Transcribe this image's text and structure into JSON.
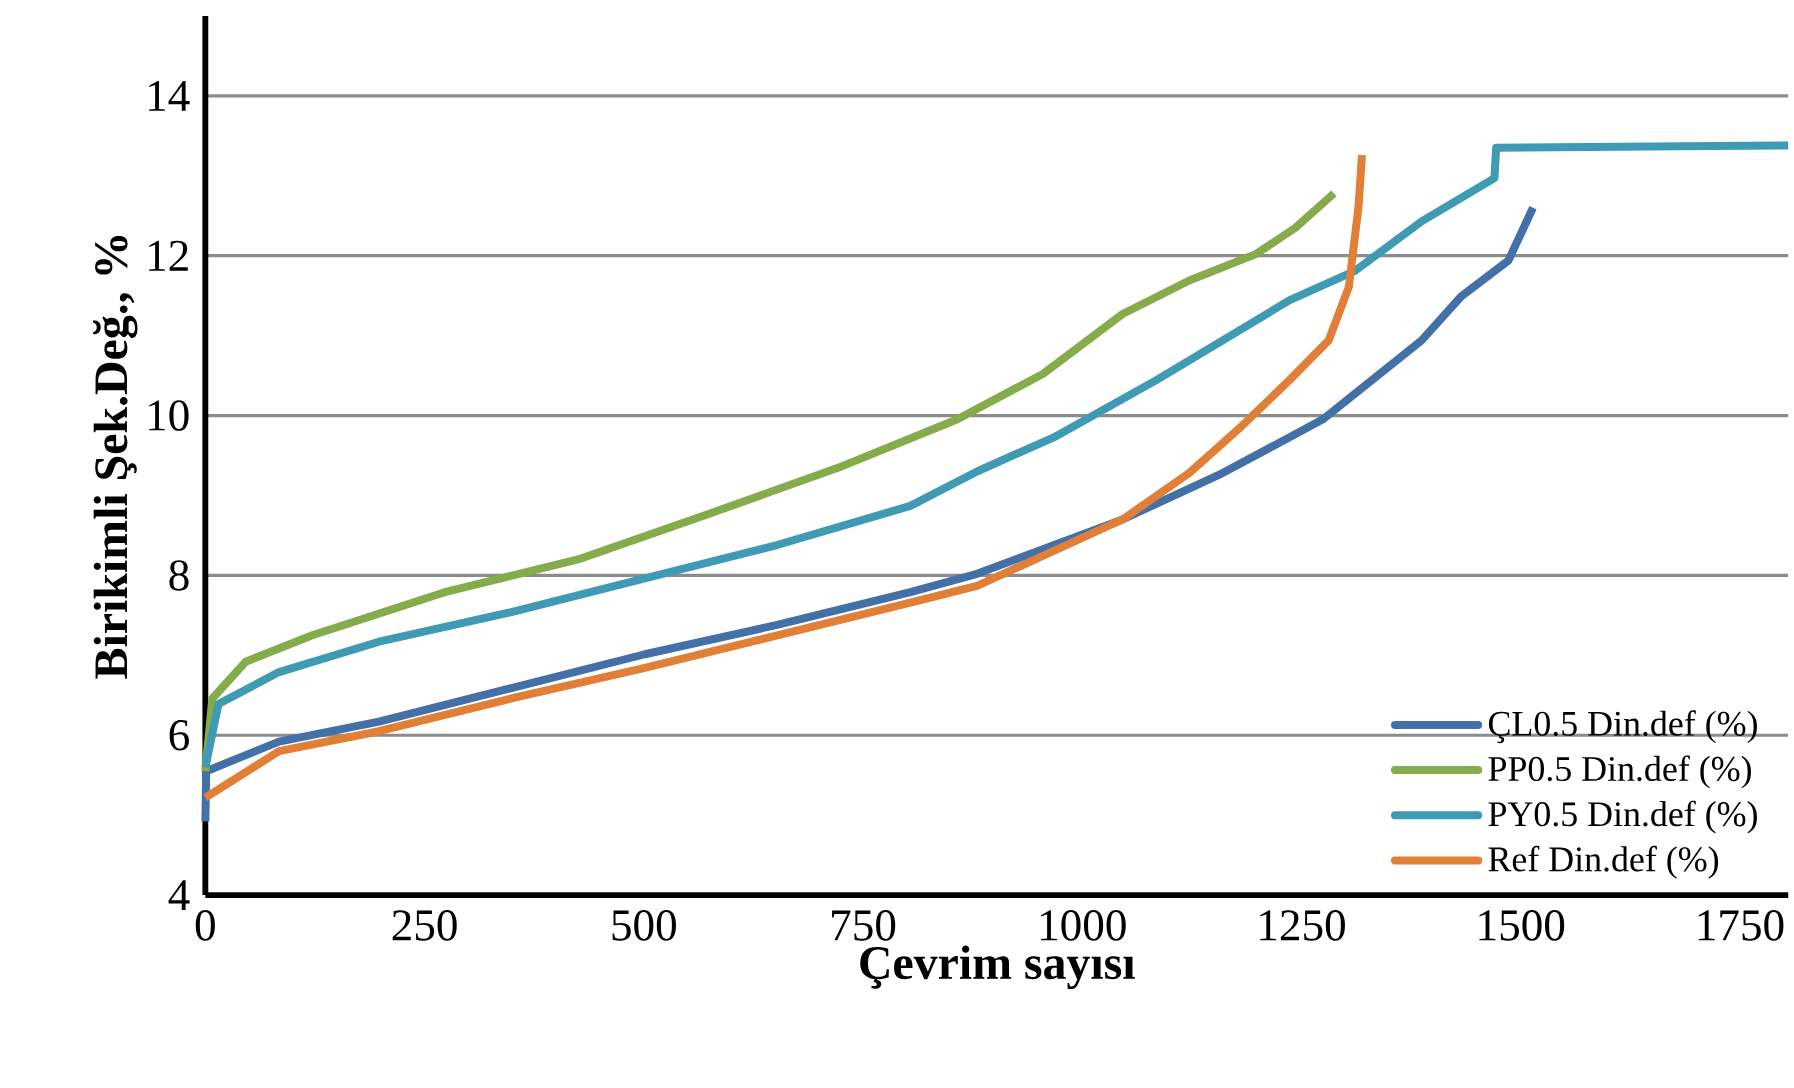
{
  "chart_data": {
    "type": "line",
    "xlabel": "Çevrim sayısı",
    "ylabel": "Birikimli Şek.Değ., %",
    "xlim": [
      0,
      1805
    ],
    "ylim": [
      4,
      15
    ],
    "xticks": [
      0,
      250,
      500,
      750,
      1000,
      1250,
      1500,
      1750
    ],
    "yticks": [
      4,
      6,
      8,
      10,
      12,
      14
    ],
    "grid": "y",
    "legend": "bottom right",
    "marker": "none",
    "line_style": "solid",
    "series": [
      {
        "name": "ÇL0.5 Din.def (%)",
        "color": "#4470a8",
        "x": [
          0,
          1,
          84,
          198,
          349,
          500,
          652,
          804,
          880,
          1046,
          1160,
          1274,
          1387,
          1432,
          1486,
          1514
        ],
        "values": [
          4.92,
          5.55,
          5.92,
          6.17,
          6.59,
          7.01,
          7.38,
          7.79,
          8.02,
          8.7,
          9.28,
          9.95,
          10.94,
          11.49,
          11.94,
          12.6
        ]
      },
      {
        "name": "PP0.5 Din.def (%)",
        "color": "#86ab4a",
        "x": [
          0,
          8,
          46,
          122,
          273,
          425,
          577,
          727,
          857,
          955,
          1046,
          1122,
          1198,
          1243,
          1287
        ],
        "values": [
          5.55,
          6.46,
          6.92,
          7.25,
          7.79,
          8.2,
          8.78,
          9.37,
          9.95,
          10.52,
          11.27,
          11.69,
          12.02,
          12.35,
          12.78
        ]
      },
      {
        "name": "PY0.5 Din.def (%)",
        "color": "#3f9bb3",
        "x": [
          0,
          15,
          84,
          198,
          349,
          500,
          652,
          804,
          880,
          970,
          1084,
          1236,
          1311,
          1387,
          1470,
          1472,
          1805
        ],
        "values": [
          5.6,
          6.39,
          6.79,
          7.17,
          7.54,
          7.96,
          8.38,
          8.87,
          9.3,
          9.74,
          10.44,
          11.44,
          11.81,
          12.43,
          12.97,
          13.35,
          13.38
        ]
      },
      {
        "name": "Ref Din.def (%)",
        "color": "#e07f35",
        "x": [
          0,
          84,
          198,
          349,
          500,
          652,
          804,
          880,
          1046,
          1122,
          1182,
          1236,
          1281,
          1304,
          1315,
          1319
        ],
        "values": [
          5.22,
          5.8,
          6.05,
          6.46,
          6.84,
          7.25,
          7.66,
          7.87,
          8.7,
          9.28,
          9.87,
          10.44,
          10.94,
          11.61,
          12.61,
          13.26
        ]
      }
    ]
  }
}
